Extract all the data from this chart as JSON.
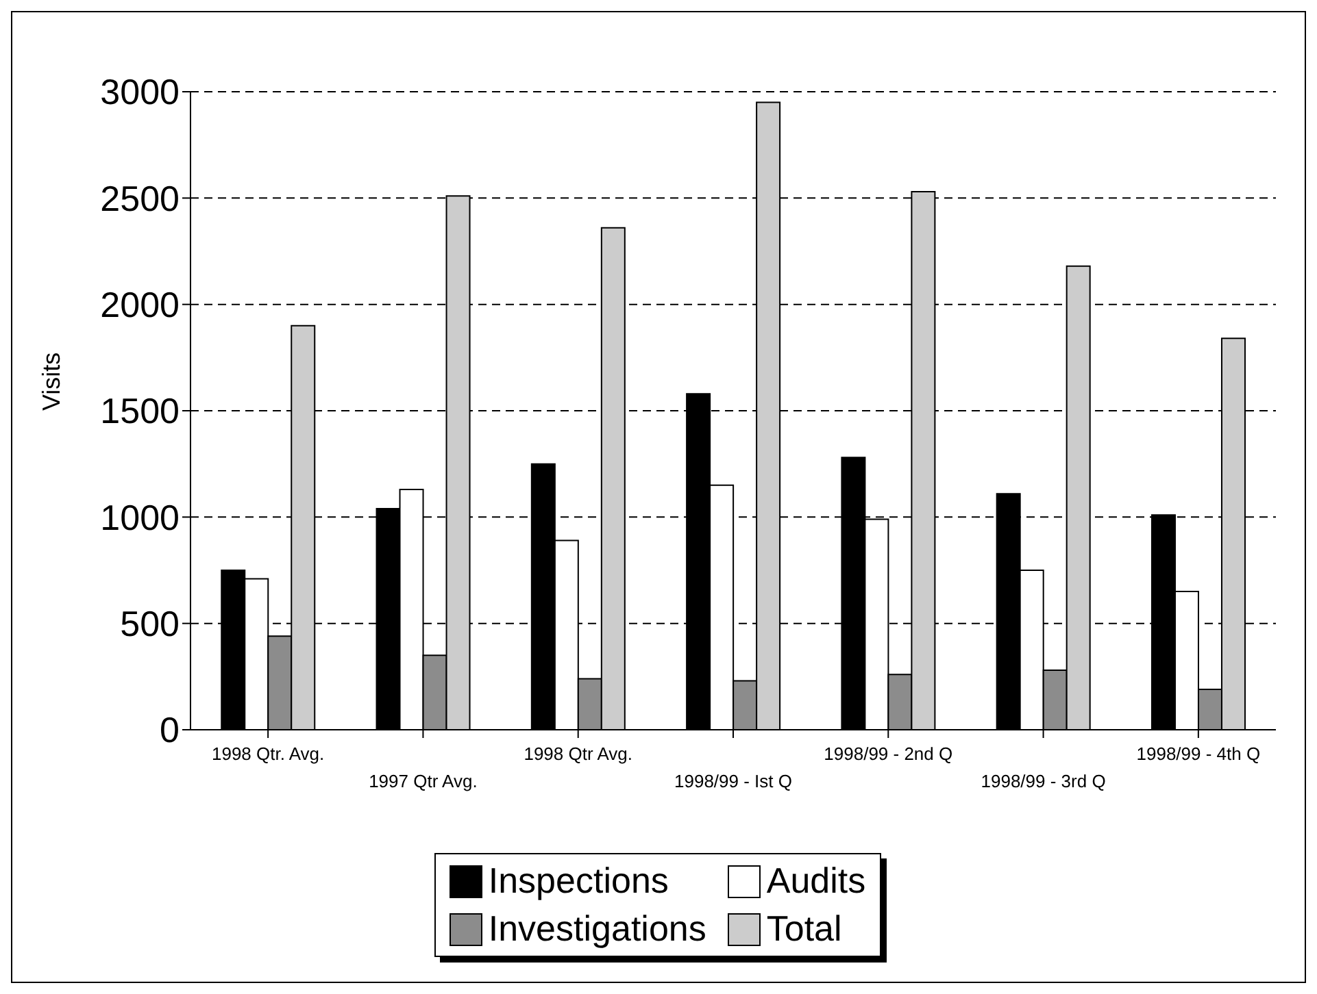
{
  "chart_data": {
    "type": "bar",
    "ylabel": "Visits",
    "categories": [
      "1998 Qtr. Avg.",
      "1997 Qtr Avg.",
      "1998 Qtr Avg.",
      "1998/99 - Ist Q",
      "1998/99 - 2nd Q",
      "1998/99 - 3rd Q",
      "1998/99 - 4th Q"
    ],
    "series": [
      {
        "name": "Inspections",
        "color": "#000000",
        "values": [
          750,
          1040,
          1250,
          1580,
          1280,
          1110,
          1010
        ]
      },
      {
        "name": "Audits",
        "color": "#ffffff",
        "values": [
          710,
          1130,
          890,
          1150,
          990,
          750,
          650
        ]
      },
      {
        "name": "Investigations",
        "color": "#8c8c8c",
        "values": [
          440,
          350,
          240,
          230,
          260,
          280,
          190
        ]
      },
      {
        "name": "Total",
        "color": "#cccccc",
        "values": [
          1900,
          2510,
          2360,
          2950,
          2530,
          2180,
          1840
        ]
      }
    ],
    "ylim": [
      0,
      3000
    ],
    "yticks": [
      0,
      500,
      1000,
      1500,
      2000,
      2500,
      3000
    ],
    "grid": "y",
    "legend": "bottom"
  }
}
